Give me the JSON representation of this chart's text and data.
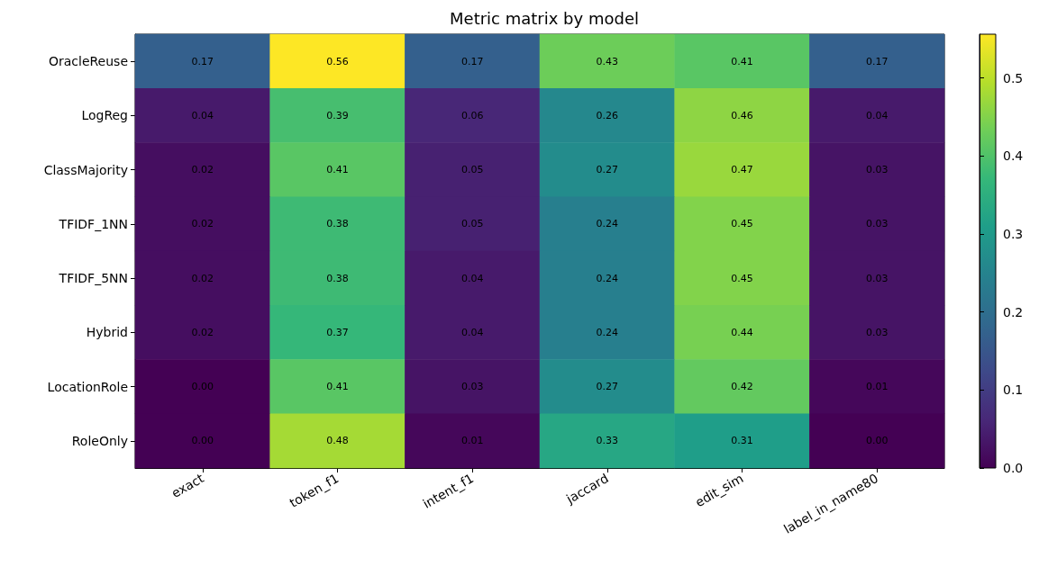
{
  "chart_data": {
    "type": "heatmap",
    "title": "Metric matrix by model",
    "categories": [
      "exact",
      "token_f1",
      "intent_f1",
      "jaccard",
      "edit_sim",
      "label_in_name80"
    ],
    "y_categories": [
      "OracleReuse",
      "LogReg",
      "ClassMajority",
      "TFIDF_1NN",
      "TFIDF_5NN",
      "Hybrid",
      "LocationRole",
      "RoleOnly"
    ],
    "cells": [
      [
        0.17,
        0.56,
        0.17,
        0.43,
        0.41,
        0.17
      ],
      [
        0.04,
        0.39,
        0.06,
        0.26,
        0.46,
        0.04
      ],
      [
        0.02,
        0.41,
        0.05,
        0.27,
        0.47,
        0.03
      ],
      [
        0.02,
        0.38,
        0.05,
        0.24,
        0.45,
        0.03
      ],
      [
        0.02,
        0.38,
        0.04,
        0.24,
        0.45,
        0.03
      ],
      [
        0.02,
        0.37,
        0.04,
        0.24,
        0.44,
        0.03
      ],
      [
        0.0,
        0.41,
        0.03,
        0.27,
        0.42,
        0.01
      ],
      [
        0.0,
        0.48,
        0.01,
        0.33,
        0.31,
        0.0
      ]
    ],
    "cell_labels": [
      [
        "0.17",
        "0.56",
        "0.17",
        "0.43",
        "0.41",
        "0.17"
      ],
      [
        "0.04",
        "0.39",
        "0.06",
        "0.26",
        "0.46",
        "0.04"
      ],
      [
        "0.02",
        "0.41",
        "0.05",
        "0.27",
        "0.47",
        "0.03"
      ],
      [
        "0.02",
        "0.38",
        "0.05",
        "0.24",
        "0.45",
        "0.03"
      ],
      [
        "0.02",
        "0.38",
        "0.04",
        "0.24",
        "0.45",
        "0.03"
      ],
      [
        "0.02",
        "0.37",
        "0.04",
        "0.24",
        "0.44",
        "0.03"
      ],
      [
        "0.00",
        "0.41",
        "0.03",
        "0.27",
        "0.42",
        "0.01"
      ],
      [
        "0.00",
        "0.48",
        "0.01",
        "0.33",
        "0.31",
        "0.00"
      ]
    ],
    "clim": [
      0,
      0.556
    ],
    "cticks": [
      {
        "value": 0,
        "label": "0.0"
      },
      0.1,
      0.2,
      0.3,
      0.4,
      0.5
    ],
    "data_labels": true
  }
}
